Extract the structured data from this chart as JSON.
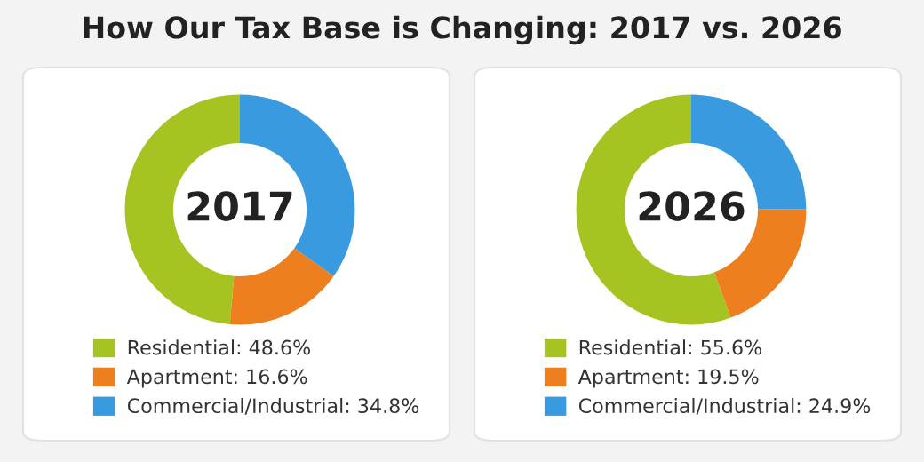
{
  "chart_data": [
    {
      "type": "donut",
      "title": "How Our Tax Base is Changing: 2017 vs. 2026",
      "annotations": [
        "2017"
      ],
      "legend": "bottom",
      "categories": [
        "Residential: 48.6%",
        "Apartment: 16.6%",
        "Commercial/Industrial: 34.8%"
      ],
      "values": [
        48.6,
        16.6,
        34.8
      ],
      "colors": [
        "#a5c422",
        "#ee7f1f",
        "#3a9ae0"
      ]
    },
    {
      "type": "donut",
      "annotations": [
        "2026"
      ],
      "legend": "bottom",
      "categories": [
        "Residential: 55.6%",
        "Apartment: 19.5%",
        "Commercial/Industrial: 24.9%"
      ],
      "values": [
        55.6,
        19.5,
        24.9
      ],
      "colors": [
        "#a5c422",
        "#ee7f1f",
        "#3a9ae0"
      ]
    }
  ]
}
